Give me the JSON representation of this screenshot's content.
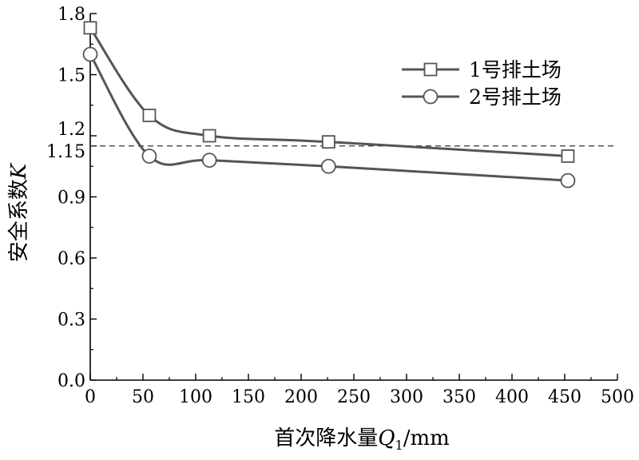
{
  "chart_data": {
    "type": "line",
    "title": "",
    "xlabel": {
      "prefix": "首次降水量",
      "var": "Q",
      "sub": "1",
      "suffix": "/mm"
    },
    "ylabel": {
      "prefix": "安全系数",
      "var": "K"
    },
    "xlim": [
      0,
      500
    ],
    "ylim": [
      0,
      1.8
    ],
    "xticks": [
      "0",
      "50",
      "100",
      "150",
      "200",
      "250",
      "300",
      "350",
      "400",
      "450",
      "500"
    ],
    "yticks": [
      {
        "value": 0.0,
        "label": "0.0"
      },
      {
        "value": 0.3,
        "label": "0.3"
      },
      {
        "value": 0.6,
        "label": "0.6"
      },
      {
        "value": 0.9,
        "label": "0.9"
      },
      {
        "value": 1.15,
        "label": "1.15"
      },
      {
        "value": 1.2,
        "label": "1.2"
      },
      {
        "value": 1.5,
        "label": "1.5"
      },
      {
        "value": 1.8,
        "label": "1.8"
      }
    ],
    "reference_line": {
      "y": 1.15,
      "style": "dashed"
    },
    "grid": false,
    "legend_position": "top-right",
    "series": [
      {
        "name": "1号排土场",
        "marker": "square",
        "x": [
          0,
          56,
          113,
          226,
          453
        ],
        "y": [
          1.73,
          1.3,
          1.2,
          1.17,
          1.1
        ]
      },
      {
        "name": "2号排土场",
        "marker": "circle",
        "x": [
          0,
          56,
          113,
          226,
          453
        ],
        "y": [
          1.6,
          1.1,
          1.08,
          1.05,
          0.98
        ]
      }
    ],
    "colors": {
      "line": "#555555",
      "axis": "#000000",
      "marker_fill": "#ffffff"
    }
  }
}
